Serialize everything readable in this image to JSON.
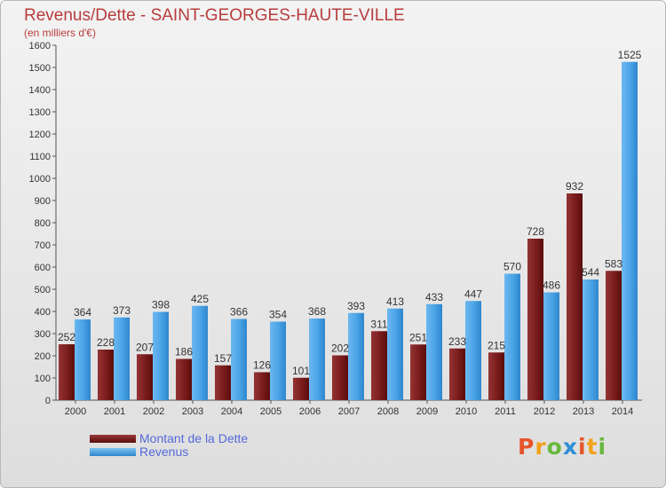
{
  "header": {
    "title": "Revenus/Dette - SAINT-GEORGES-HAUTE-VILLE",
    "subtitle": "(en milliers d'€)"
  },
  "chart_data": {
    "type": "bar",
    "title": "Revenus/Dette - SAINT-GEORGES-HAUTE-VILLE",
    "subtitle": "(en milliers d'€)",
    "categories": [
      "2000",
      "2001",
      "2002",
      "2003",
      "2004",
      "2005",
      "2006",
      "2007",
      "2008",
      "2009",
      "2010",
      "2011",
      "2012",
      "2013",
      "2014"
    ],
    "series": [
      {
        "name": "Montant de la Dette",
        "color": "#7b1c1c",
        "values": [
          252,
          228,
          207,
          186,
          157,
          126,
          101,
          202,
          311,
          251,
          233,
          215,
          728,
          932,
          583
        ]
      },
      {
        "name": "Revenus",
        "color": "#4aa3e6",
        "values": [
          364,
          373,
          398,
          425,
          366,
          354,
          368,
          393,
          413,
          433,
          447,
          570,
          486,
          544,
          1525
        ]
      }
    ],
    "ylim": [
      0,
      1600
    ],
    "yticks": [
      0,
      100,
      200,
      300,
      400,
      500,
      600,
      700,
      800,
      900,
      1000,
      1100,
      1200,
      1300,
      1400,
      1500,
      1600
    ],
    "grid": false,
    "legend_position": "bottom-left"
  },
  "legend": {
    "items": [
      {
        "label": "Montant de la Dette",
        "color": "#7b1c1c"
      },
      {
        "label": "Revenus",
        "color": "#4aa3e6"
      }
    ]
  },
  "logo": {
    "text": "Proxiti",
    "colors": [
      "#e8542a",
      "#f2a21c",
      "#67b93c",
      "#2e8fd6"
    ]
  }
}
